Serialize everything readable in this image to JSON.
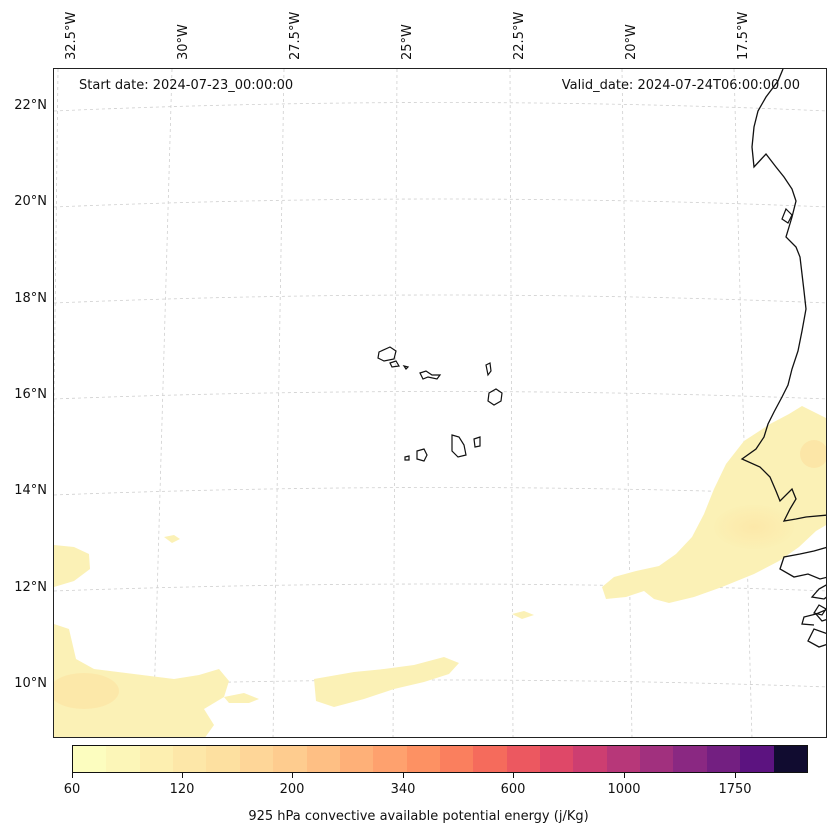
{
  "header": {
    "start_date": "Start date: 2024-07-23_00:00:00",
    "valid_date": "Valid_date: 2024-07-24T06:00:00.00"
  },
  "axes": {
    "longitudes": [
      "32.5°W",
      "30°W",
      "27.5°W",
      "25°W",
      "22.5°W",
      "20°W",
      "17.5°W"
    ],
    "latitudes": [
      "22°N",
      "20°N",
      "18°N",
      "16°N",
      "14°N",
      "12°N",
      "10°N"
    ]
  },
  "colorbar": {
    "label": "925 hPa convective available potential energy (j/Kg)",
    "tick_labels": [
      "60",
      "120",
      "200",
      "340",
      "600",
      "1000",
      "1750"
    ],
    "colors": [
      "#fcfdbf",
      "#fcf6b8",
      "#fdefb0",
      "#fde7a8",
      "#fde0a0",
      "#fed698",
      "#fecc8f",
      "#febf84",
      "#feb078",
      "#fea16e",
      "#fd9163",
      "#fa7f5e",
      "#f56b5c",
      "#ec5860",
      "#df4868",
      "#cd3e71",
      "#b73779",
      "#a1307e",
      "#8a2882",
      "#731f81",
      "#5c1380",
      "#110c30"
    ]
  },
  "regions": {
    "ocean": "Atlantic",
    "islands": "Cape Verde",
    "coast": "West Africa"
  }
}
